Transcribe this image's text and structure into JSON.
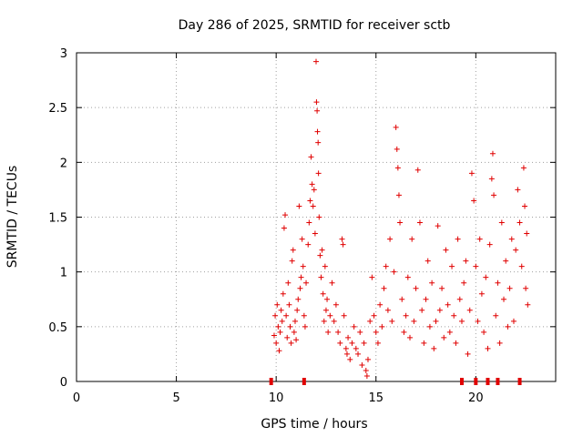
{
  "chart_data": {
    "type": "scatter",
    "title": "Day 286 of 2025, SRMTID for receiver sctb",
    "xlabel": "GPS time / hours",
    "ylabel": "SRMTID / TECUs",
    "xlim": [
      0,
      24
    ],
    "ylim": [
      0,
      3
    ],
    "xticks": [
      0,
      5,
      10,
      15,
      20
    ],
    "yticks": [
      0,
      0.5,
      1,
      1.5,
      2,
      2.5,
      3
    ],
    "xtick_labels": [
      "0",
      "5",
      "10",
      "15",
      "20"
    ],
    "ytick_labels": [
      "0",
      "0.5",
      "1",
      "1.5",
      "2",
      "2.5",
      "3"
    ],
    "grid": true,
    "marker": "+",
    "color": "#e00000",
    "series": [
      {
        "name": "SRMTID",
        "points": [
          [
            9.9,
            0.42
          ],
          [
            9.95,
            0.6
          ],
          [
            10.0,
            0.35
          ],
          [
            10.05,
            0.7
          ],
          [
            10.1,
            0.5
          ],
          [
            10.15,
            0.28
          ],
          [
            10.2,
            0.45
          ],
          [
            10.25,
            0.65
          ],
          [
            10.3,
            0.55
          ],
          [
            10.35,
            0.8
          ],
          [
            10.4,
            1.4
          ],
          [
            10.45,
            1.52
          ],
          [
            10.5,
            0.6
          ],
          [
            10.55,
            0.4
          ],
          [
            10.6,
            0.9
          ],
          [
            10.65,
            0.7
          ],
          [
            10.7,
            0.5
          ],
          [
            10.75,
            0.35
          ],
          [
            10.8,
            1.1
          ],
          [
            10.85,
            1.2
          ],
          [
            10.9,
            0.45
          ],
          [
            10.95,
            0.55
          ],
          [
            11.0,
            0.38
          ],
          [
            11.05,
            0.65
          ],
          [
            11.1,
            0.75
          ],
          [
            11.15,
            1.6
          ],
          [
            11.2,
            0.85
          ],
          [
            11.25,
            0.95
          ],
          [
            11.3,
            1.3
          ],
          [
            11.35,
            1.05
          ],
          [
            11.4,
            0.6
          ],
          [
            11.45,
            0.5
          ],
          [
            11.5,
            0.9
          ],
          [
            11.6,
            1.25
          ],
          [
            11.65,
            1.45
          ],
          [
            11.7,
            1.65
          ],
          [
            11.75,
            2.05
          ],
          [
            11.8,
            1.8
          ],
          [
            11.85,
            1.6
          ],
          [
            11.9,
            1.75
          ],
          [
            11.95,
            1.35
          ],
          [
            12.0,
            2.92
          ],
          [
            12.02,
            2.55
          ],
          [
            12.05,
            2.47
          ],
          [
            12.07,
            2.28
          ],
          [
            12.1,
            2.18
          ],
          [
            12.12,
            1.9
          ],
          [
            12.15,
            1.5
          ],
          [
            12.2,
            1.15
          ],
          [
            12.25,
            0.95
          ],
          [
            12.3,
            1.2
          ],
          [
            12.35,
            0.8
          ],
          [
            12.4,
            0.55
          ],
          [
            12.45,
            1.05
          ],
          [
            12.5,
            0.65
          ],
          [
            12.55,
            0.75
          ],
          [
            12.6,
            0.45
          ],
          [
            12.7,
            0.6
          ],
          [
            12.8,
            0.9
          ],
          [
            12.9,
            0.55
          ],
          [
            13.0,
            0.7
          ],
          [
            13.1,
            0.45
          ],
          [
            13.2,
            0.35
          ],
          [
            13.3,
            1.3
          ],
          [
            13.35,
            1.25
          ],
          [
            13.4,
            0.6
          ],
          [
            13.5,
            0.3
          ],
          [
            13.55,
            0.25
          ],
          [
            13.6,
            0.4
          ],
          [
            13.7,
            0.2
          ],
          [
            13.8,
            0.35
          ],
          [
            13.9,
            0.5
          ],
          [
            14.0,
            0.3
          ],
          [
            14.1,
            0.25
          ],
          [
            14.2,
            0.45
          ],
          [
            14.3,
            0.15
          ],
          [
            14.4,
            0.35
          ],
          [
            14.5,
            0.1
          ],
          [
            14.55,
            0.05
          ],
          [
            14.6,
            0.2
          ],
          [
            14.7,
            0.55
          ],
          [
            14.8,
            0.95
          ],
          [
            14.9,
            0.6
          ],
          [
            15.0,
            0.45
          ],
          [
            15.1,
            0.35
          ],
          [
            15.2,
            0.7
          ],
          [
            15.3,
            0.5
          ],
          [
            15.4,
            0.85
          ],
          [
            15.5,
            1.05
          ],
          [
            15.6,
            0.65
          ],
          [
            15.7,
            1.3
          ],
          [
            15.8,
            0.55
          ],
          [
            15.9,
            1.0
          ],
          [
            16.0,
            2.32
          ],
          [
            16.05,
            2.12
          ],
          [
            16.1,
            1.95
          ],
          [
            16.15,
            1.7
          ],
          [
            16.2,
            1.45
          ],
          [
            16.3,
            0.75
          ],
          [
            16.4,
            0.45
          ],
          [
            16.5,
            0.6
          ],
          [
            16.6,
            0.95
          ],
          [
            16.7,
            0.4
          ],
          [
            16.8,
            1.3
          ],
          [
            16.9,
            0.55
          ],
          [
            17.0,
            0.85
          ],
          [
            17.1,
            1.93
          ],
          [
            17.2,
            1.45
          ],
          [
            17.3,
            0.65
          ],
          [
            17.4,
            0.35
          ],
          [
            17.5,
            0.75
          ],
          [
            17.6,
            1.1
          ],
          [
            17.7,
            0.5
          ],
          [
            17.8,
            0.9
          ],
          [
            17.9,
            0.3
          ],
          [
            18.0,
            0.55
          ],
          [
            18.1,
            1.42
          ],
          [
            18.2,
            0.65
          ],
          [
            18.3,
            0.85
          ],
          [
            18.4,
            0.4
          ],
          [
            18.5,
            1.2
          ],
          [
            18.6,
            0.7
          ],
          [
            18.7,
            0.45
          ],
          [
            18.8,
            1.05
          ],
          [
            18.9,
            0.6
          ],
          [
            19.0,
            0.35
          ],
          [
            19.1,
            1.3
          ],
          [
            19.2,
            0.75
          ],
          [
            19.3,
            0.55
          ],
          [
            19.4,
            0.9
          ],
          [
            19.5,
            1.1
          ],
          [
            19.6,
            0.25
          ],
          [
            19.7,
            0.65
          ],
          [
            19.8,
            1.9
          ],
          [
            19.9,
            1.65
          ],
          [
            20.0,
            1.05
          ],
          [
            20.1,
            0.55
          ],
          [
            20.2,
            1.3
          ],
          [
            20.3,
            0.8
          ],
          [
            20.4,
            0.45
          ],
          [
            20.5,
            0.95
          ],
          [
            20.6,
            0.3
          ],
          [
            20.7,
            1.25
          ],
          [
            20.8,
            1.85
          ],
          [
            20.85,
            2.08
          ],
          [
            20.9,
            1.7
          ],
          [
            21.0,
            0.6
          ],
          [
            21.1,
            0.9
          ],
          [
            21.2,
            0.35
          ],
          [
            21.3,
            1.45
          ],
          [
            21.4,
            0.75
          ],
          [
            21.5,
            1.1
          ],
          [
            21.6,
            0.5
          ],
          [
            21.7,
            0.85
          ],
          [
            21.8,
            1.3
          ],
          [
            21.9,
            0.55
          ],
          [
            22.0,
            1.2
          ],
          [
            22.1,
            1.75
          ],
          [
            22.2,
            1.45
          ],
          [
            22.3,
            1.05
          ],
          [
            22.4,
            1.95
          ],
          [
            22.45,
            1.6
          ],
          [
            22.5,
            0.85
          ],
          [
            22.55,
            1.35
          ],
          [
            22.6,
            0.7
          ]
        ]
      }
    ],
    "zero_points": [
      9.75,
      11.4,
      19.3,
      20.0,
      20.6,
      21.1,
      22.2
    ]
  }
}
